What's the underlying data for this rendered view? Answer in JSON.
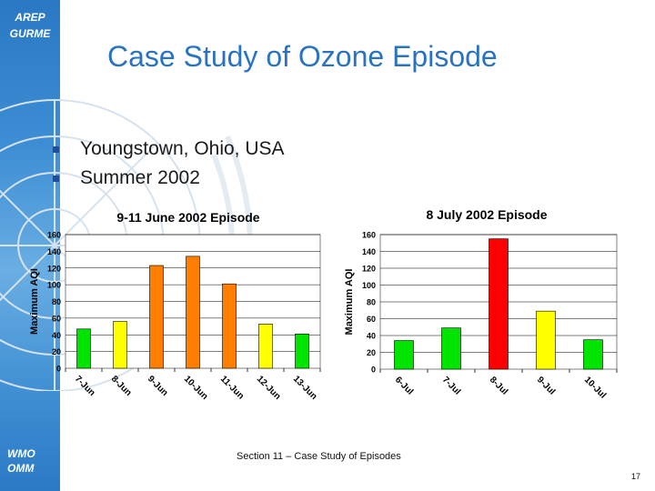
{
  "sidebar": {
    "org_lines": [
      "AREP",
      "GURME"
    ],
    "footer_lines": [
      "WMO",
      "OMM"
    ]
  },
  "slide": {
    "title": "Case Study of Ozone Episode",
    "bullets": [
      "Youngstown, Ohio, USA",
      "Summer 2002"
    ],
    "footer": "Section 11 – Case Study of Episodes",
    "page_number": "17"
  },
  "chart_data": [
    {
      "type": "bar",
      "title": "9-11 June 2002 Episode",
      "xlabel": "",
      "ylabel": "Maximum AQI",
      "ylim": [
        0,
        160
      ],
      "yticks": [
        0,
        20,
        40,
        60,
        80,
        100,
        120,
        140,
        160
      ],
      "grid": true,
      "categories": [
        "7-Jun",
        "8-Jun",
        "9-Jun",
        "10-Jun",
        "11-Jun",
        "12-Jun",
        "13-Jun"
      ],
      "values": [
        47,
        56,
        123,
        134,
        101,
        53,
        41
      ],
      "colors": [
        "#00e400",
        "#ffff00",
        "#ff7e00",
        "#ff7e00",
        "#ff7e00",
        "#ffff00",
        "#00e400"
      ]
    },
    {
      "type": "bar",
      "title": "8 July 2002 Episode",
      "xlabel": "",
      "ylabel": "Maximum AQI",
      "ylim": [
        0,
        160
      ],
      "yticks": [
        0,
        20,
        40,
        60,
        80,
        100,
        120,
        140,
        160
      ],
      "grid": true,
      "categories": [
        "6-Jul",
        "7-Jul",
        "8-Jul",
        "9-Jul",
        "10-Jul"
      ],
      "values": [
        34,
        49,
        155,
        69,
        35
      ],
      "colors": [
        "#00e400",
        "#00e400",
        "#ff0000",
        "#ffff00",
        "#00e400"
      ]
    }
  ]
}
